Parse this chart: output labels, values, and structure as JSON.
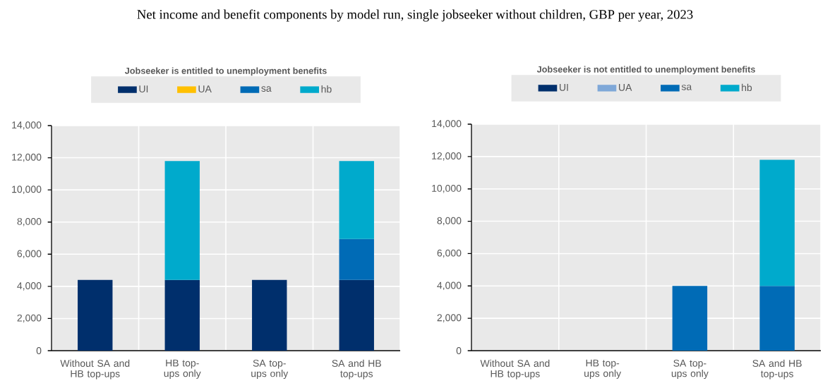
{
  "chart_data": [
    {
      "type": "bar",
      "title": "Jobseeker is entitled to unemployment benefits",
      "annotations": [
        "Net income and benefit components by model run, single jobseeker without children, GBP per year, 2023"
      ],
      "categories": [
        "Without SA and HB top-ups",
        "HB top-ups only",
        "SA top-ups only",
        "SA and HB top-ups"
      ],
      "stacked": true,
      "grid": true,
      "legend": "top",
      "ylim": [
        0,
        14000
      ],
      "yticks": [
        0,
        {
          "value": 2000,
          "label": "2,000"
        },
        {
          "value": 4000,
          "label": "4,000"
        },
        {
          "value": 6000,
          "label": "6,000"
        },
        {
          "value": 8000,
          "label": "8,000"
        },
        {
          "value": 10000,
          "label": "10,000"
        },
        {
          "value": 12000,
          "label": "12,000"
        },
        {
          "value": 14000,
          "label": "14,000"
        }
      ],
      "series": [
        {
          "name": "UI",
          "color": "#002f6c",
          "values": [
            4400,
            4400,
            4400,
            4400
          ]
        },
        {
          "name": "UA",
          "color": "#ffc000",
          "values": [
            null,
            null,
            null,
            null
          ]
        },
        {
          "name": "sa",
          "color": "#006bb6",
          "values": [
            null,
            null,
            null,
            2550
          ]
        },
        {
          "name": "hb",
          "color": "#00aacc",
          "values": [
            null,
            7400,
            null,
            4850
          ]
        }
      ]
    },
    {
      "type": "bar",
      "title": "Jobseeker is not entitled to unemployment benefits",
      "categories": [
        "Without SA and HB top-ups",
        "HB top-ups only",
        "SA top-ups only",
        "SA and HB top-ups"
      ],
      "stacked": true,
      "grid": true,
      "legend": "top",
      "ylim": [
        0,
        14000
      ],
      "yticks": [
        0,
        {
          "value": 2000,
          "label": "2,000"
        },
        {
          "value": 4000,
          "label": "4,000"
        },
        {
          "value": 6000,
          "label": "6,000"
        },
        {
          "value": 8000,
          "label": "8,000"
        },
        {
          "value": 10000,
          "label": "10,000"
        },
        {
          "value": 12000,
          "label": "12,000"
        },
        {
          "value": 14000,
          "label": "14,000"
        }
      ],
      "series": [
        {
          "name": "UI",
          "color": "#002f6c",
          "values": [
            null,
            null,
            null,
            null
          ]
        },
        {
          "name": "UA",
          "color": "#7fa8d8",
          "values": [
            null,
            null,
            null,
            null
          ]
        },
        {
          "name": "sa",
          "color": "#006bb6",
          "values": [
            null,
            null,
            4000,
            4000
          ]
        },
        {
          "name": "hb",
          "color": "#00aacc",
          "values": [
            null,
            null,
            null,
            7800
          ]
        }
      ]
    }
  ]
}
